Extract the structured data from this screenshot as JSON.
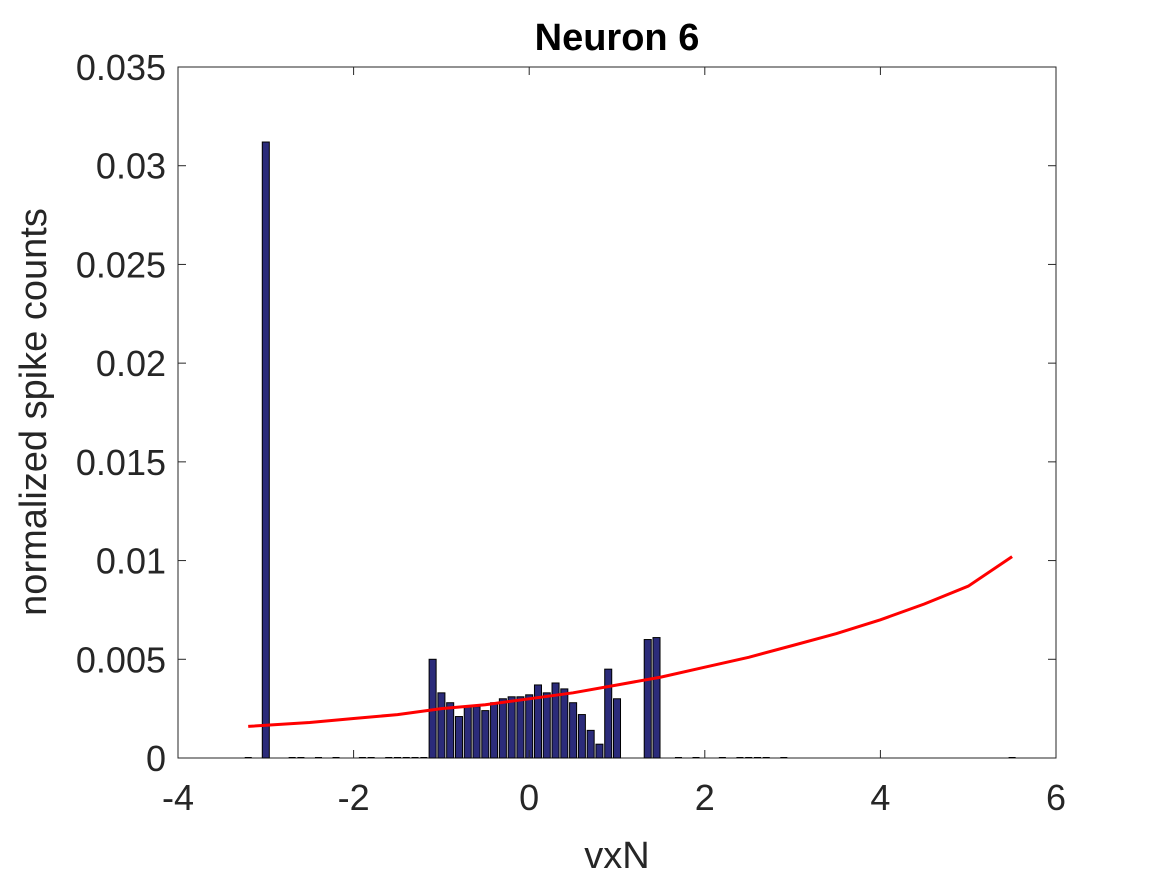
{
  "chart_data": {
    "type": "bar",
    "title": "Neuron 6",
    "xlabel": "vxN",
    "ylabel": "normalized spike counts",
    "xlim": [
      -4,
      6
    ],
    "ylim": [
      0,
      0.035
    ],
    "xticks": [
      -4,
      -2,
      0,
      2,
      4,
      6
    ],
    "xtick_labels": [
      "-4",
      "-2",
      "0",
      "2",
      "4",
      "6"
    ],
    "yticks": [
      0,
      0.005,
      0.01,
      0.015,
      0.02,
      0.025,
      0.03,
      0.035
    ],
    "ytick_labels": [
      "0",
      "0.005",
      "0.01",
      "0.015",
      "0.02",
      "0.025",
      "0.03",
      "0.035"
    ],
    "grid": false,
    "bar_width": 0.08,
    "bars": {
      "x": [
        -3.0,
        -1.1,
        -1.0,
        -0.9,
        -0.8,
        -0.7,
        -0.6,
        -0.5,
        -0.4,
        -0.3,
        -0.2,
        -0.1,
        0.0,
        0.1,
        0.2,
        0.3,
        0.4,
        0.5,
        0.6,
        0.7,
        0.8,
        0.9,
        1.0,
        1.1,
        1.35,
        1.45
      ],
      "values": [
        0.0312,
        0.005,
        0.0033,
        0.0028,
        0.0021,
        0.0026,
        0.0026,
        0.0024,
        0.0028,
        0.003,
        0.0031,
        0.0031,
        0.0032,
        0.0037,
        0.0033,
        0.0038,
        0.0035,
        0.0028,
        0.0022,
        0.0014,
        0.0007,
        0.0045,
        0.003,
        0.0,
        0.006,
        0.0061
      ]
    },
    "empty_bins_x": [
      -3.2,
      -2.7,
      -2.6,
      -2.4,
      -2.2,
      -1.9,
      -1.8,
      -1.6,
      -1.5,
      -1.4,
      -1.3,
      -1.2,
      1.7,
      1.9,
      2.2,
      2.4,
      2.5,
      2.6,
      2.7,
      2.9,
      5.5
    ],
    "bar_color": "#2b2b7a",
    "bar_edge_color": "#000000",
    "fit_line": {
      "type": "line",
      "color": "#ff0000",
      "x": [
        -3.2,
        -2.5,
        -2.0,
        -1.5,
        -1.0,
        -0.5,
        0.0,
        0.5,
        1.0,
        1.5,
        2.0,
        2.5,
        3.0,
        3.5,
        4.0,
        4.5,
        5.0,
        5.5
      ],
      "y": [
        0.0016,
        0.0018,
        0.002,
        0.0022,
        0.0025,
        0.0027,
        0.003,
        0.0033,
        0.0037,
        0.0041,
        0.0046,
        0.0051,
        0.0057,
        0.0063,
        0.007,
        0.0078,
        0.0087,
        0.0102
      ]
    }
  }
}
